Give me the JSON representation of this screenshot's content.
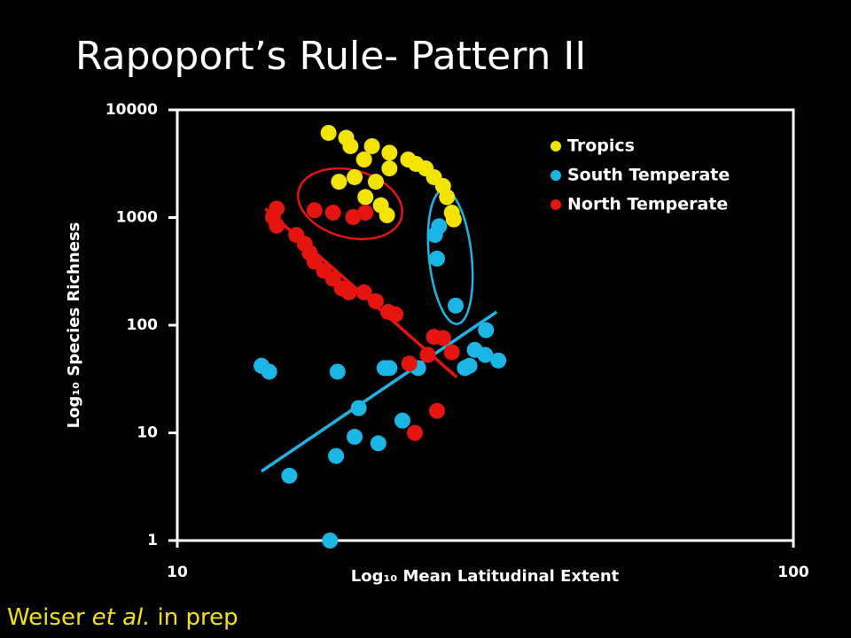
{
  "chart_data": {
    "type": "scatter",
    "title": "Rapoport’s Rule- Pattern II",
    "xlabel": "Log₁₀ Mean Latitudinal Extent",
    "ylabel": "Log₁₀ Species Richness",
    "xlim": [
      10,
      100
    ],
    "ylim": [
      1,
      10000
    ],
    "xticks": [
      10,
      100
    ],
    "yticks": [
      1,
      10,
      100,
      1000,
      10000
    ],
    "log_x": true,
    "log_y": true,
    "legend": "upper right",
    "series": [
      {
        "name": "Tropics",
        "color": "#f3e400",
        "x": [
          17.6,
          18.8,
          20.7,
          22.1,
          23.7,
          25.3,
          26.1,
          27.0,
          27.4,
          27.9,
          28.1,
          20.1,
          22.1,
          18.3,
          19.4,
          21.0,
          20.2,
          21.4,
          21.9,
          24.4,
          19.1
        ],
        "y": [
          6110,
          5500,
          4600,
          4000,
          3460,
          2860,
          2370,
          1960,
          1550,
          1110,
          960,
          3460,
          2860,
          2150,
          2370,
          2150,
          1550,
          1300,
          1050,
          3150,
          4600
        ]
      },
      {
        "name": "South Temperate",
        "color": "#19b6e6",
        "x": [
          13.7,
          14.1,
          18.2,
          21.7,
          22.1,
          24.6,
          29.3,
          29.8,
          30.4,
          31.6,
          31.7,
          33.2,
          19.7,
          23.2,
          19.4,
          21.2,
          18.1,
          15.2,
          17.7,
          26.4,
          26.6,
          26.2,
          28.3
        ],
        "y": [
          42,
          37,
          37,
          40,
          40,
          40,
          40,
          42,
          59,
          53,
          90,
          47,
          17,
          13,
          9.2,
          8.0,
          6.1,
          4.0,
          1,
          415,
          830,
          690,
          152
        ],
        "trend": {
          "x": [
            13.7,
            33.0
          ],
          "y": [
            4.4,
            133
          ]
        }
      },
      {
        "name": "North Temperate",
        "color": "#e5140e",
        "x": [
          14.5,
          14.3,
          14.5,
          15.6,
          16.1,
          16.4,
          16.7,
          17.3,
          17.9,
          18.5,
          19.0,
          20.1,
          21.0,
          22.0,
          22.6,
          16.7,
          17.9,
          19.3,
          20.2,
          23.8,
          25.5,
          26.1,
          27.0,
          27.9,
          24.3,
          26.4
        ],
        "y": [
          1210,
          1010,
          840,
          690,
          570,
          470,
          390,
          320,
          270,
          220,
          202,
          202,
          167,
          133,
          126,
          1170,
          1110,
          1010,
          1110,
          44,
          53,
          78,
          76,
          56,
          10,
          16
        ],
        "trend": {
          "x": [
            13.9,
            28.4
          ],
          "y": [
            1210,
            33
          ]
        }
      }
    ]
  },
  "footer": {
    "author": "Weiser",
    "etal": "et al.",
    "note": "in prep"
  }
}
